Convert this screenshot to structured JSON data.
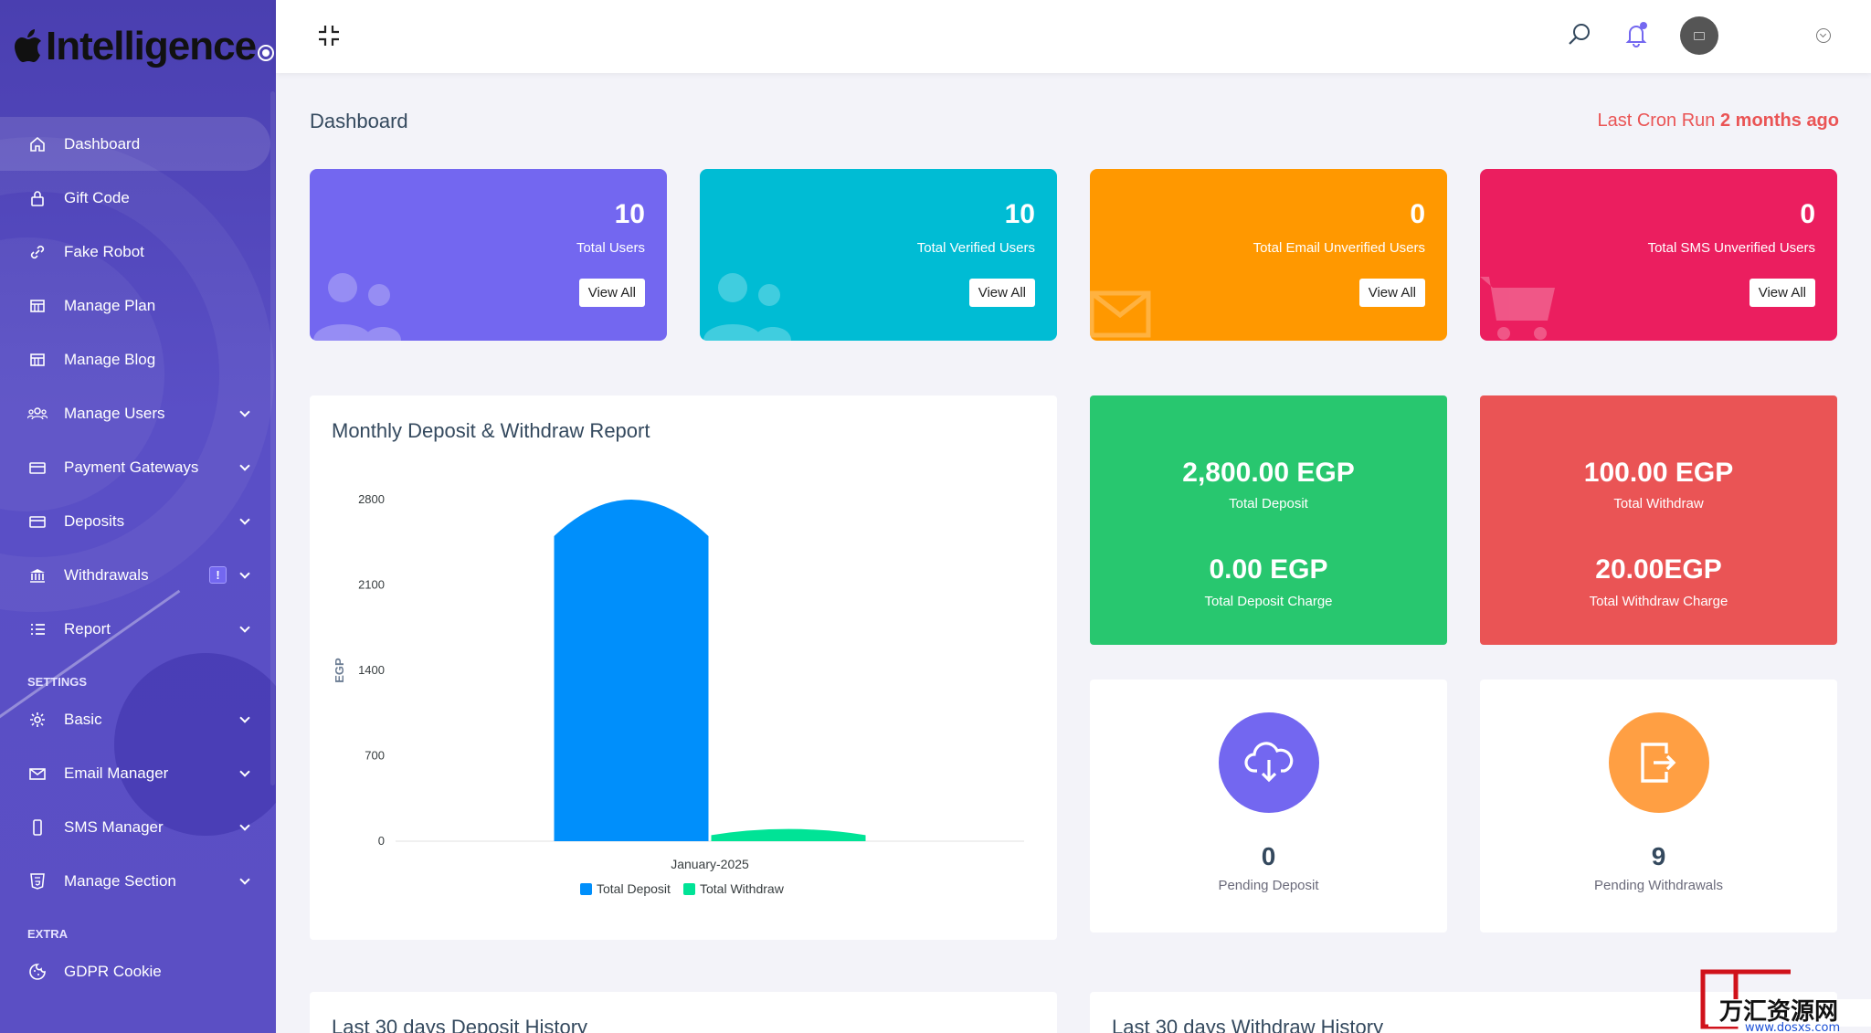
{
  "brand": {
    "name": "Intelligence"
  },
  "sidebar": {
    "items": [
      {
        "label": "Dashboard",
        "icon": "home-icon"
      },
      {
        "label": "Gift Code",
        "icon": "lock-icon"
      },
      {
        "label": "Fake Robot",
        "icon": "link-icon"
      },
      {
        "label": "Manage Plan",
        "icon": "grid-icon"
      },
      {
        "label": "Manage Blog",
        "icon": "grid-icon"
      },
      {
        "label": "Manage Users",
        "icon": "users-icon"
      },
      {
        "label": "Payment Gateways",
        "icon": "card-icon"
      },
      {
        "label": "Deposits",
        "icon": "card-icon"
      },
      {
        "label": "Withdrawals",
        "icon": "bank-icon",
        "badge": "!"
      },
      {
        "label": "Report",
        "icon": "list-icon"
      }
    ],
    "settings_heading": "SETTINGS",
    "settings_items": [
      {
        "label": "Basic",
        "icon": "gear-icon"
      },
      {
        "label": "Email Manager",
        "icon": "mail-icon"
      },
      {
        "label": "SMS Manager",
        "icon": "phone-icon"
      },
      {
        "label": "Manage Section",
        "icon": "html5-icon"
      }
    ],
    "extra_heading": "EXTRA",
    "extra_items": [
      {
        "label": "GDPR Cookie",
        "icon": "cookie-icon"
      }
    ]
  },
  "header": {
    "page_title": "Dashboard",
    "cron_label": "Last Cron Run",
    "cron_value": "2 months ago"
  },
  "widgets": [
    {
      "value": "10",
      "label": "Total Users",
      "button": "View All",
      "color": "#7367f0",
      "icon": "users-icon"
    },
    {
      "value": "10",
      "label": "Total Verified Users",
      "button": "View All",
      "color": "#00bcd4",
      "icon": "users-icon"
    },
    {
      "value": "0",
      "label": "Total Email Unverified Users",
      "button": "View All",
      "color": "#ff9800",
      "icon": "envelope-icon"
    },
    {
      "value": "0",
      "label": "Total SMS Unverified Users",
      "button": "View All",
      "color": "#eb1e5f",
      "icon": "cart-icon"
    }
  ],
  "chart_data": {
    "type": "bar",
    "title": "Monthly Deposit & Withdraw Report",
    "categories": [
      "January-2025"
    ],
    "series": [
      {
        "name": "Total Deposit",
        "values": [
          2800
        ],
        "color": "#008ffb"
      },
      {
        "name": "Total Withdraw",
        "values": [
          100
        ],
        "color": "#00e396"
      }
    ],
    "ylabel": "EGP",
    "yticks": [
      0,
      700,
      1400,
      2100,
      2800
    ],
    "ylim": [
      0,
      2800
    ],
    "legend": "bottom"
  },
  "totals": {
    "deposit": {
      "amount": "2,800.00 EGP",
      "label": "Total Deposit",
      "charge": "0.00 EGP",
      "charge_label": "Total Deposit Charge"
    },
    "withdraw": {
      "amount": "100.00 EGP",
      "label": "Total Withdraw",
      "charge": "20.00EGP",
      "charge_label": "Total Withdraw Charge"
    }
  },
  "pending": {
    "deposit": {
      "value": "0",
      "label": "Pending Deposit"
    },
    "withdraw": {
      "value": "9",
      "label": "Pending Withdrawals"
    }
  },
  "bottom": {
    "deposit_history": "Last 30 days Deposit History",
    "withdraw_history": "Last 30 days Withdraw History"
  },
  "watermark": {
    "text": "万汇资源网",
    "url": "www.dosxs.com"
  }
}
